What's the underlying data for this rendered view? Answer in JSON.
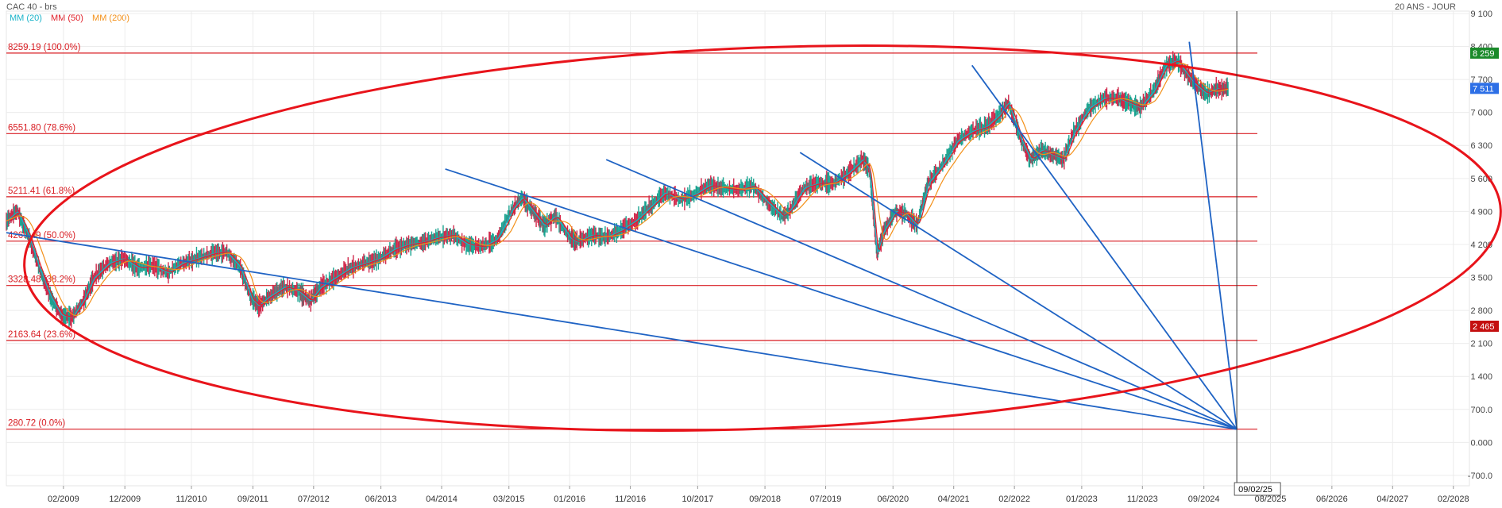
{
  "header": {
    "title": "CAC 40 - brs",
    "period": "20 ANS - JOUR",
    "legend": [
      {
        "label": "MM (20)",
        "color": "#19b3c9"
      },
      {
        "label": "MM (50)",
        "color": "#e0202a"
      },
      {
        "label": "MM (200)",
        "color": "#f39019"
      }
    ]
  },
  "chart_data": {
    "type": "line",
    "title": "CAC 40 - brs",
    "subtitle": "20 ANS - JOUR",
    "ylim": [
      -900,
      9300
    ],
    "y_ticks": [
      9100,
      8400,
      7700,
      7000,
      6300,
      5600,
      4900,
      4200,
      3500,
      2800,
      2100,
      1400,
      700,
      0,
      -700
    ],
    "y_tick_labels": [
      "9 100",
      "8 400",
      "7 700",
      "7 000",
      "6 300",
      "5 600",
      "4 900",
      "4 200",
      "3 500",
      "2 800",
      "2 100",
      "1 400",
      "700.0",
      "0.000",
      "-700.0"
    ],
    "x_ticks": [
      "02/2009",
      "12/2009",
      "11/2010",
      "09/2011",
      "07/2012",
      "06/2013",
      "04/2014",
      "03/2015",
      "01/2016",
      "11/2016",
      "10/2017",
      "09/2018",
      "07/2019",
      "06/2020",
      "04/2021",
      "02/2022",
      "01/2023",
      "11/2023",
      "09/2024",
      "08/2025",
      "06/2026",
      "04/2027",
      "02/2028"
    ],
    "x_tick_dates": [
      2009.08,
      2009.92,
      2010.83,
      2011.67,
      2012.5,
      2013.42,
      2014.25,
      2015.17,
      2016.0,
      2016.83,
      2017.75,
      2018.67,
      2019.5,
      2020.42,
      2021.25,
      2022.08,
      2023.0,
      2023.83,
      2024.67,
      2025.58,
      2026.42,
      2027.25,
      2028.08
    ],
    "x_range": [
      2008.3,
      2028.3
    ],
    "price_series": {
      "name": "CAC 40",
      "x": [
        2008.3,
        2008.45,
        2008.6,
        2008.75,
        2008.9,
        2009.05,
        2009.2,
        2009.35,
        2009.5,
        2009.7,
        2009.9,
        2010.1,
        2010.3,
        2010.5,
        2010.7,
        2010.9,
        2011.1,
        2011.3,
        2011.5,
        2011.65,
        2011.75,
        2011.9,
        2012.1,
        2012.3,
        2012.45,
        2012.6,
        2012.8,
        2013.0,
        2013.2,
        2013.4,
        2013.6,
        2013.8,
        2014.0,
        2014.2,
        2014.4,
        2014.6,
        2014.8,
        2015.0,
        2015.2,
        2015.35,
        2015.5,
        2015.65,
        2015.8,
        2016.0,
        2016.1,
        2016.3,
        2016.5,
        2016.7,
        2016.9,
        2017.1,
        2017.3,
        2017.5,
        2017.7,
        2017.9,
        2018.1,
        2018.3,
        2018.5,
        2018.7,
        2018.9,
        2019.0,
        2019.2,
        2019.4,
        2019.6,
        2019.8,
        2020.0,
        2020.1,
        2020.2,
        2020.3,
        2020.45,
        2020.6,
        2020.75,
        2020.9,
        2021.1,
        2021.3,
        2021.5,
        2021.7,
        2021.9,
        2022.0,
        2022.15,
        2022.3,
        2022.45,
        2022.6,
        2022.75,
        2022.9,
        2023.1,
        2023.3,
        2023.5,
        2023.65,
        2023.8,
        2024.0,
        2024.15,
        2024.3,
        2024.45,
        2024.55,
        2024.7,
        2024.85,
        2025.0
      ],
      "y": [
        4700,
        4900,
        4400,
        3700,
        3100,
        2700,
        2650,
        3000,
        3500,
        3800,
        3900,
        3700,
        3750,
        3600,
        3800,
        3900,
        4000,
        4050,
        3700,
        3050,
        2900,
        3100,
        3300,
        3200,
        3000,
        3300,
        3500,
        3700,
        3800,
        3900,
        4100,
        4200,
        4250,
        4350,
        4400,
        4200,
        4150,
        4300,
        4900,
        5200,
        4900,
        4600,
        4800,
        4350,
        4250,
        4400,
        4350,
        4500,
        4700,
        5000,
        5300,
        5150,
        5250,
        5450,
        5400,
        5350,
        5450,
        5100,
        4800,
        4900,
        5400,
        5500,
        5500,
        5700,
        6000,
        5800,
        4000,
        4500,
        4900,
        4850,
        4600,
        5500,
        5900,
        6400,
        6600,
        6700,
        7000,
        7200,
        6500,
        6000,
        6200,
        6100,
        6000,
        6600,
        7100,
        7300,
        7300,
        7200,
        7100,
        7500,
        8000,
        8100,
        7800,
        7600,
        7400,
        7500,
        7500
      ]
    },
    "moving_averages": [
      {
        "name": "MM (20)",
        "color": "#19b3c9"
      },
      {
        "name": "MM (50)",
        "color": "#e0202a"
      },
      {
        "name": "MM (200)",
        "color": "#f39019"
      }
    ],
    "fib_levels": [
      {
        "label": "8259.19  (100.0%)",
        "value": 8259.19
      },
      {
        "label": "6551.80  (78.6%)",
        "value": 6551.8
      },
      {
        "label": "5211.41  (61.8%)",
        "value": 5211.41
      },
      {
        "label": "4269.49  (50.0%)",
        "value": 4269.49
      },
      {
        "label": "3328.48  (38.2%)",
        "value": 3328.48
      },
      {
        "label": "2163.64  (23.6%)",
        "value": 2163.64
      },
      {
        "label": "280.72  (0.0%)",
        "value": 280.72
      }
    ],
    "price_badges": [
      {
        "label": "8 259",
        "value": 8259,
        "color": "#1a8a2a"
      },
      {
        "label": "7 511",
        "value": 7511,
        "color": "#2d6fe6"
      },
      {
        "label": "2 465",
        "value": 2465,
        "color": "#c41010"
      }
    ],
    "fan_origin": {
      "x": 2025.12,
      "y": 280
    },
    "fan_lines": [
      {
        "x": 2008.3,
        "y": 4450
      },
      {
        "x": 2014.3,
        "y": 5800
      },
      {
        "x": 2016.5,
        "y": 6000
      },
      {
        "x": 2019.15,
        "y": 6150
      },
      {
        "x": 2021.5,
        "y": 8000
      },
      {
        "x": 2024.47,
        "y": 8500
      }
    ],
    "cursor": {
      "label": "09/02/25",
      "x": 2025.12
    },
    "ellipse": {
      "color": "#e8141b"
    },
    "fan_color": "#1f63c4",
    "fib_color": "#d81c22"
  }
}
